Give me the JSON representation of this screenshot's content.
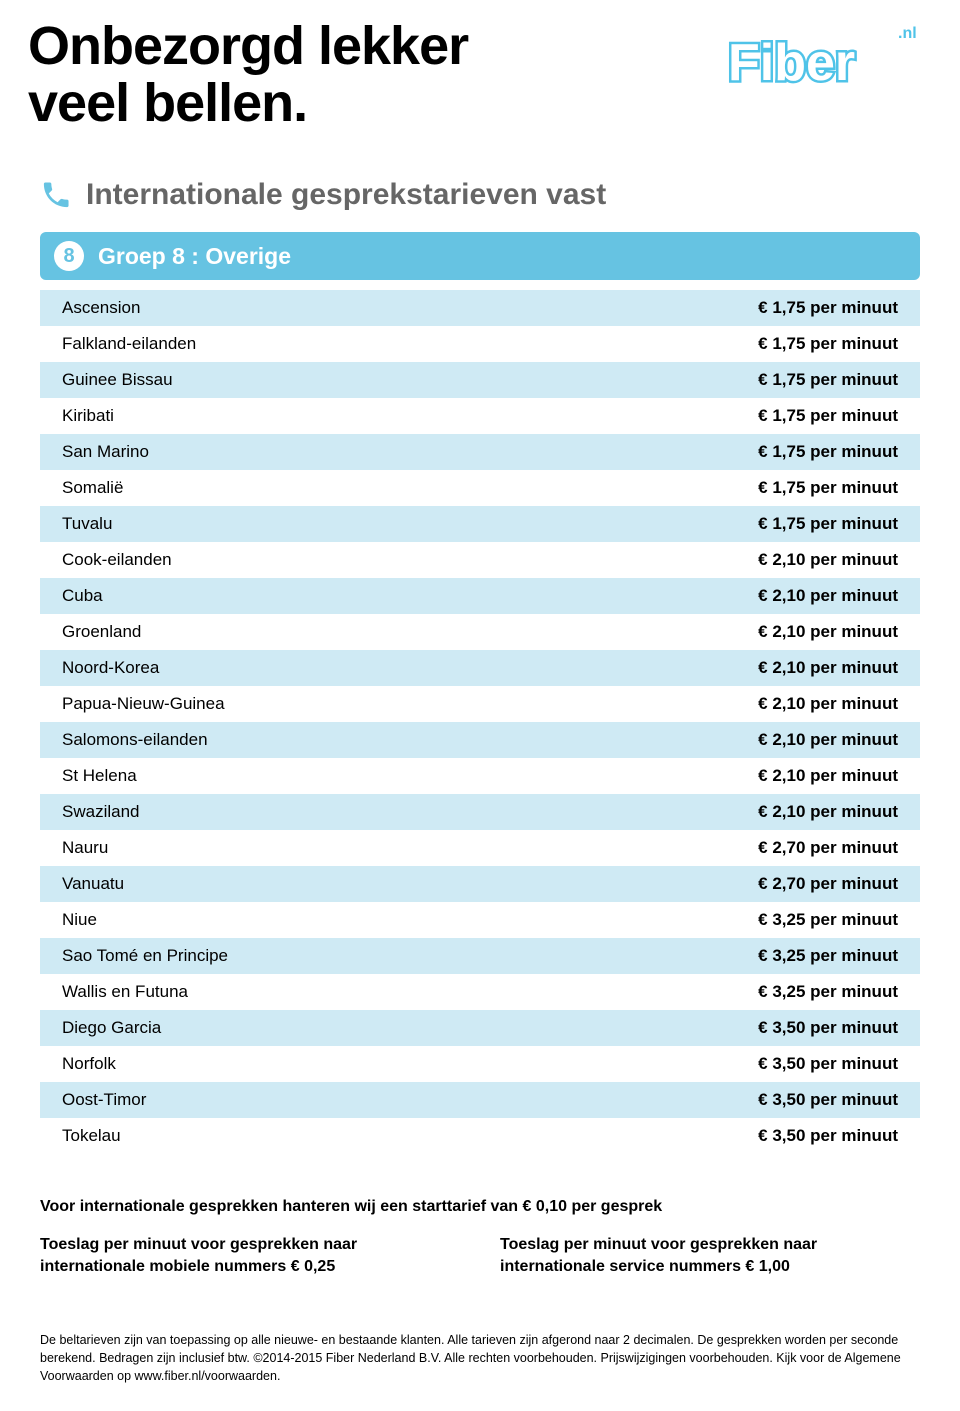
{
  "title_line1": "Onbezorgd lekker",
  "title_line2": "veel bellen.",
  "logo": {
    "text": "Fiber",
    "suffix": ".nl",
    "fill": "#ffffff",
    "stroke": "#4fc3e8"
  },
  "subtitle": "Internationale gesprekstarieven vast",
  "group": {
    "badge": "8",
    "title": "Groep 8 : Overige",
    "header_bg": "#66c3e2",
    "row_even_bg": "#cfeaf4",
    "row_odd_bg": "#ffffff"
  },
  "rates": [
    {
      "country": "Ascension",
      "price": "€ 1,75 per minuut"
    },
    {
      "country": "Falkland-eilanden",
      "price": "€ 1,75 per minuut"
    },
    {
      "country": "Guinee Bissau",
      "price": "€ 1,75 per minuut"
    },
    {
      "country": "Kiribati",
      "price": "€ 1,75 per minuut"
    },
    {
      "country": "San Marino",
      "price": "€ 1,75 per minuut"
    },
    {
      "country": "Somalië",
      "price": "€ 1,75 per minuut"
    },
    {
      "country": "Tuvalu",
      "price": "€ 1,75 per minuut"
    },
    {
      "country": "Cook-eilanden",
      "price": "€ 2,10 per minuut"
    },
    {
      "country": "Cuba",
      "price": "€ 2,10 per minuut"
    },
    {
      "country": "Groenland",
      "price": "€ 2,10 per minuut"
    },
    {
      "country": "Noord-Korea",
      "price": "€ 2,10 per minuut"
    },
    {
      "country": "Papua-Nieuw-Guinea",
      "price": "€ 2,10 per minuut"
    },
    {
      "country": "Salomons-eilanden",
      "price": "€ 2,10 per minuut"
    },
    {
      "country": "St Helena",
      "price": "€ 2,10 per minuut"
    },
    {
      "country": "Swaziland",
      "price": "€ 2,10 per minuut"
    },
    {
      "country": "Nauru",
      "price": "€ 2,70 per minuut"
    },
    {
      "country": "Vanuatu",
      "price": "€ 2,70 per minuut"
    },
    {
      "country": "Niue",
      "price": "€ 3,25 per minuut"
    },
    {
      "country": "Sao Tomé en Principe",
      "price": "€ 3,25 per minuut"
    },
    {
      "country": "Wallis en Futuna",
      "price": "€ 3,25 per minuut"
    },
    {
      "country": "Diego Garcia",
      "price": "€ 3,50 per minuut"
    },
    {
      "country": "Norfolk",
      "price": "€ 3,50 per minuut"
    },
    {
      "country": "Oost-Timor",
      "price": "€ 3,50 per minuut"
    },
    {
      "country": "Tokelau",
      "price": "€ 3,50 per minuut"
    }
  ],
  "notes": {
    "start": "Voor internationale gesprekken hanteren wij een starttarief van € 0,10 per gesprek",
    "left": "Toeslag per minuut voor gesprekken naar internationale mobiele nummers € 0,25",
    "right": "Toeslag per minuut voor gesprekken naar internationale service nummers € 1,00"
  },
  "footer": "De beltarieven zijn van toepassing op alle nieuwe- en bestaande klanten. Alle tarieven zijn afgerond naar 2 decimalen. De gesprekken worden per seconde berekend. Bedragen zijn inclusief btw. ©2014-2015 Fiber Nederland B.V. Alle rechten voorbehouden. Prijswijzigingen voorbehouden. Kijk voor de Algemene Voorwaarden op www.fiber.nl/voorwaarden."
}
